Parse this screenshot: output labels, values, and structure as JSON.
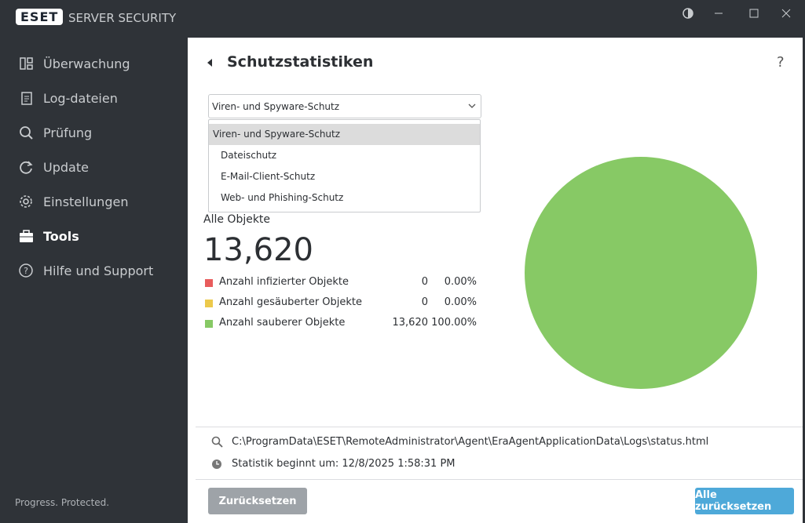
{
  "header": {
    "logo": "eset",
    "product": "SERVER SECURITY"
  },
  "sidebar": {
    "items": [
      "Überwachung",
      "Log-dateien",
      "Prüfung",
      "Update",
      "Einstellungen",
      "Tools",
      "Hilfe und Support"
    ],
    "footer": "Progress. Protected."
  },
  "page": {
    "title": "Schutzstatistiken",
    "help": "?",
    "dropdown": {
      "selected": "Viren- und Spyware-Schutz",
      "options": [
        "Viren- und Spyware-Schutz",
        "Dateischutz",
        "E-Mail-Client-Schutz",
        "Web- und Phishing-Schutz"
      ]
    },
    "total_label": "Alle Objekte",
    "total": "13,620",
    "statistics": {
      "type": "pie",
      "series": [
        {
          "name": "Anzahl infizierter Objekte",
          "color": "#e85c5c",
          "count": "0",
          "value": 0,
          "value_label": "0.00%"
        },
        {
          "name": "Anzahl gesäuberter Objekte",
          "color": "#ecc94b",
          "count": "0",
          "value": 0,
          "value_label": "0.00%"
        },
        {
          "name": "Anzahl sauberer Objekte",
          "color": "#87c965",
          "count": "13,620",
          "value": 100,
          "value_label": "100.00%"
        }
      ]
    },
    "path": "C:\\ProgramData\\ESET\\RemoteAdministrator\\Agent\\EraAgentApplicationData\\Logs\\status.html",
    "started": "Statistik beginnt um: 12/8/2025 1:58:31 PM",
    "buttons": {
      "reset": "Zurücksetzen",
      "reset_all": "Alle zurücksetzen"
    }
  }
}
